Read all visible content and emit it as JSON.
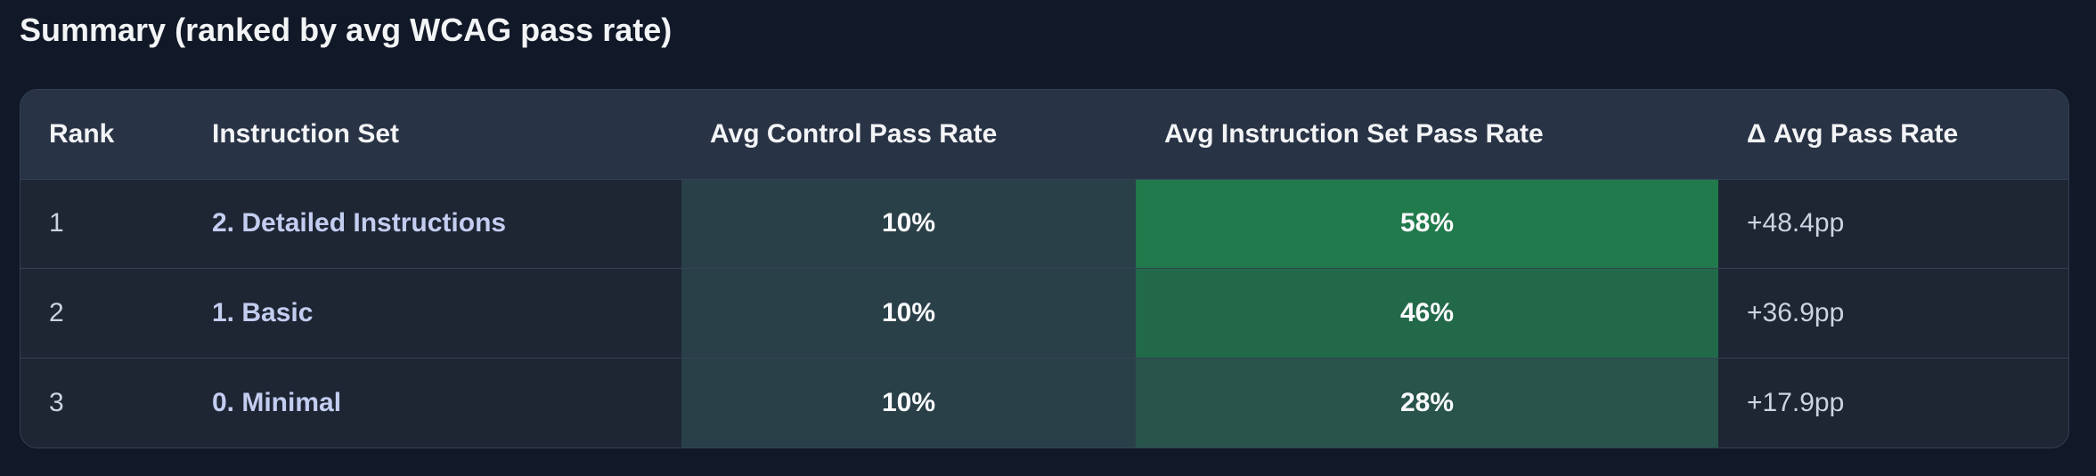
{
  "title": "Summary (ranked by avg WCAG pass rate)",
  "table": {
    "headers": [
      "Rank",
      "Instruction Set",
      "Avg Control Pass Rate",
      "Avg Instruction Set Pass Rate",
      "Δ Avg Pass Rate"
    ],
    "rows": [
      [
        "1",
        "2. Detailed Instructions",
        "10%",
        "58%",
        "+48.4pp"
      ],
      [
        "2",
        "1. Basic",
        "10%",
        "46%",
        "+36.9pp"
      ],
      [
        "3",
        "0. Minimal",
        "10%",
        "28%",
        "+17.9pp"
      ]
    ]
  }
}
